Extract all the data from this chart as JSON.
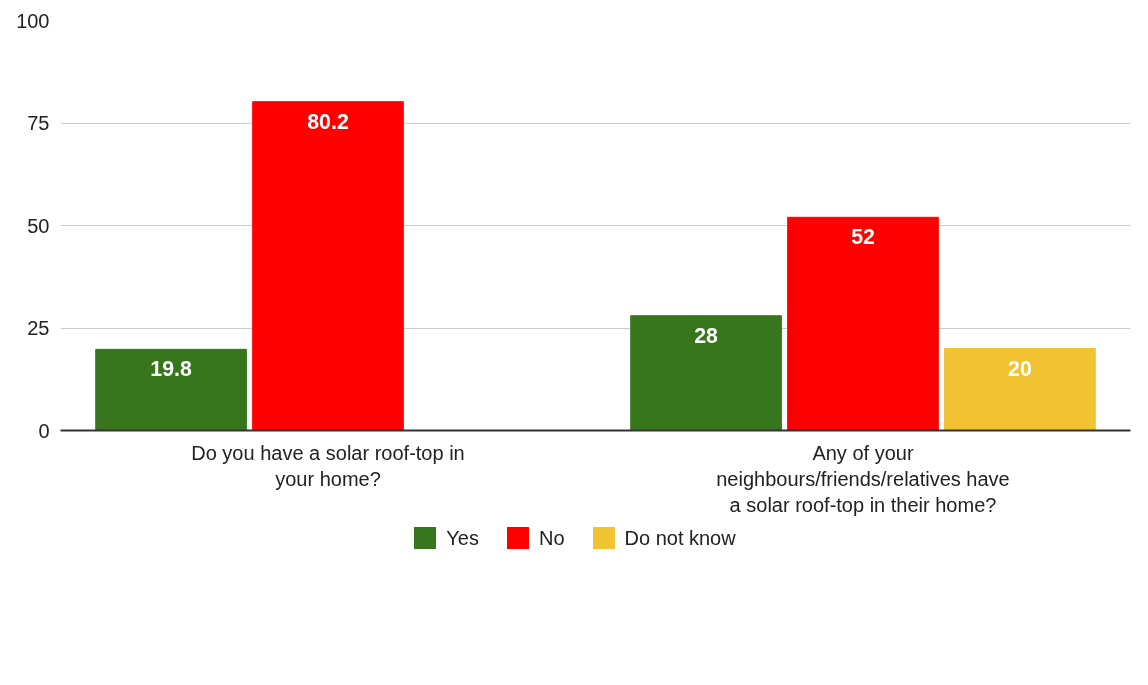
{
  "chart_data": {
    "type": "bar",
    "categories": [
      "Do you have a solar roof-top in your home?",
      "Any of your neighbours/friends/relatives have a solar roof-top in their home?"
    ],
    "series": [
      {
        "name": "Yes",
        "color": "#38761d",
        "values": [
          19.8,
          28
        ]
      },
      {
        "name": "No",
        "color": "#ff0000",
        "values": [
          80.2,
          52
        ]
      },
      {
        "name": "Do not know",
        "color": "#f1c232",
        "values": [
          null,
          20
        ]
      }
    ],
    "ylim": [
      0,
      100
    ],
    "yticks": [
      0,
      25,
      50,
      75,
      100
    ],
    "grid": "y",
    "legend": "bottom",
    "data_labels": true
  }
}
